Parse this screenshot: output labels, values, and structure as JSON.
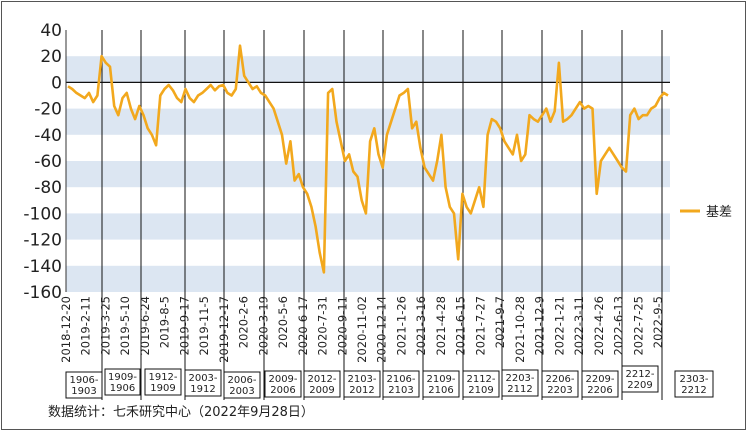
{
  "chart_data": {
    "type": "line",
    "ylim": [
      -160,
      40
    ],
    "yticks": [
      40,
      20,
      0,
      -20,
      -40,
      -60,
      -80,
      -100,
      -120,
      -140,
      -160
    ],
    "grid_bands": true,
    "legend_position": "right",
    "series": [
      {
        "name": "基差",
        "color": "#F2A81D",
        "values": [
          -3,
          -5,
          -8,
          -10,
          -12,
          -8,
          -15,
          -10,
          20,
          15,
          12,
          -18,
          -25,
          -12,
          -8,
          -20,
          -28,
          -18,
          -25,
          -35,
          -40,
          -48,
          -10,
          -5,
          -2,
          -6,
          -12,
          -15,
          -5,
          -12,
          -15,
          -10,
          -8,
          -5,
          -2,
          -6,
          -3,
          -2,
          -8,
          -10,
          -5,
          28,
          5,
          0,
          -5,
          -3,
          -8,
          -10,
          -15,
          -20,
          -30,
          -40,
          -62,
          -45,
          -75,
          -70,
          -80,
          -85,
          -95,
          -110,
          -130,
          -145,
          -8,
          -5,
          -30,
          -45,
          -60,
          -55,
          -68,
          -72,
          -90,
          -100,
          -45,
          -35,
          -55,
          -65,
          -40,
          -30,
          -20,
          -10,
          -8,
          -5,
          -35,
          -30,
          -50,
          -65,
          -70,
          -75,
          -60,
          -40,
          -80,
          -95,
          -100,
          -135,
          -85,
          -95,
          -100,
          -90,
          -80,
          -95,
          -40,
          -28,
          -30,
          -35,
          -45,
          -50,
          -55,
          -40,
          -60,
          -55,
          -25,
          -28,
          -30,
          -25,
          -20,
          -30,
          -22,
          15,
          -30,
          -28,
          -25,
          -20,
          -15,
          -20,
          -18,
          -20,
          -85,
          -60,
          -55,
          -50,
          -55,
          -60,
          -65,
          -68,
          -25,
          -20,
          -28,
          -25,
          -25,
          -20,
          -18,
          -12,
          -8,
          -10
        ]
      }
    ],
    "x_labels": [
      "2018-12-20",
      "2019-2-11",
      "2019-3-25",
      "2019-5-10",
      "2019-6-24",
      "2019-8-5",
      "2019-9-17",
      "2019-11-5",
      "2019-12-17",
      "2020-2-6",
      "2020-3-19",
      "2020-5-6",
      "2020-6-17",
      "2020-7-31",
      "2020-9-11",
      "2020-11-02",
      "2020-12-14",
      "2021-1-26",
      "2021-3-16",
      "2021-4-28",
      "2021-6-15",
      "2021-7-27",
      "2021-9-7",
      "2021-10-28",
      "2021-12-9",
      "2022-1-21",
      "2022-3-11",
      "2022-4-26",
      "2022-6-13",
      "2022-7-25",
      "2022-9-5"
    ],
    "contracts": [
      {
        "label": "1906-\n1903",
        "boxed": true
      },
      {
        "label": "1909-\n1906",
        "boxed": true
      },
      {
        "label": "1912-\n1909",
        "boxed": true
      },
      {
        "label": "2003-\n1912",
        "boxed": true
      },
      {
        "label": "2006-\n2003",
        "boxed": true
      },
      {
        "label": "2009-\n2006",
        "boxed": true
      },
      {
        "label": "2012-\n2009",
        "boxed": true
      },
      {
        "label": "2103-\n2012",
        "boxed": true
      },
      {
        "label": "2106-\n2103",
        "boxed": true
      },
      {
        "label": "2109-\n2106",
        "boxed": true
      },
      {
        "label": "2112-\n2109",
        "boxed": true
      },
      {
        "label": "2203-\n2112",
        "boxed": true
      },
      {
        "label": "2206-\n2203",
        "boxed": true
      },
      {
        "label": "2209-\n2206",
        "boxed": true
      },
      {
        "label": "2212-\n2209",
        "boxed": true
      },
      {
        "label": "2303-\n2212",
        "boxed": true
      }
    ]
  },
  "source_note": "数据统计：七禾研究中心（2022年9月28日）",
  "legend": {
    "label": "基差",
    "color": "#F2A81D"
  }
}
